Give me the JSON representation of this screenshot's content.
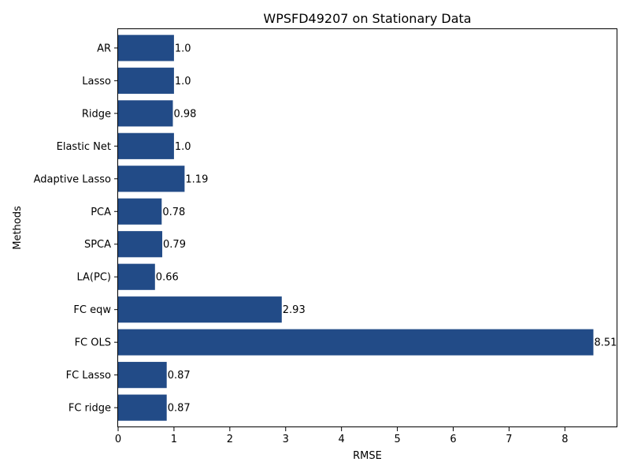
{
  "chart_data": {
    "type": "bar",
    "orientation": "horizontal",
    "title": "WPSFD49207 on Stationary Data",
    "xlabel": "RMSE",
    "ylabel": "Methods",
    "categories": [
      "AR",
      "Lasso",
      "Ridge",
      "Elastic Net",
      "Adaptive Lasso",
      "PCA",
      "SPCA",
      "LA(PC)",
      "FC eqw",
      "FC OLS",
      "FC Lasso",
      "FC ridge"
    ],
    "values": [
      1.0,
      1.0,
      0.98,
      1.0,
      1.19,
      0.78,
      0.79,
      0.66,
      2.93,
      8.51,
      0.87,
      0.87
    ],
    "data_labels": [
      "1.0",
      "1.0",
      "0.98",
      "1.0",
      "1.19",
      "0.78",
      "0.79",
      "0.66",
      "2.93",
      "8.51",
      "0.87",
      "0.87"
    ],
    "xlim": [
      0,
      8.94
    ],
    "xticks": [
      "0",
      "1",
      "2",
      "3",
      "4",
      "5",
      "6",
      "7",
      "8"
    ],
    "grid": false,
    "colors": {
      "bar": "#224b87"
    }
  }
}
